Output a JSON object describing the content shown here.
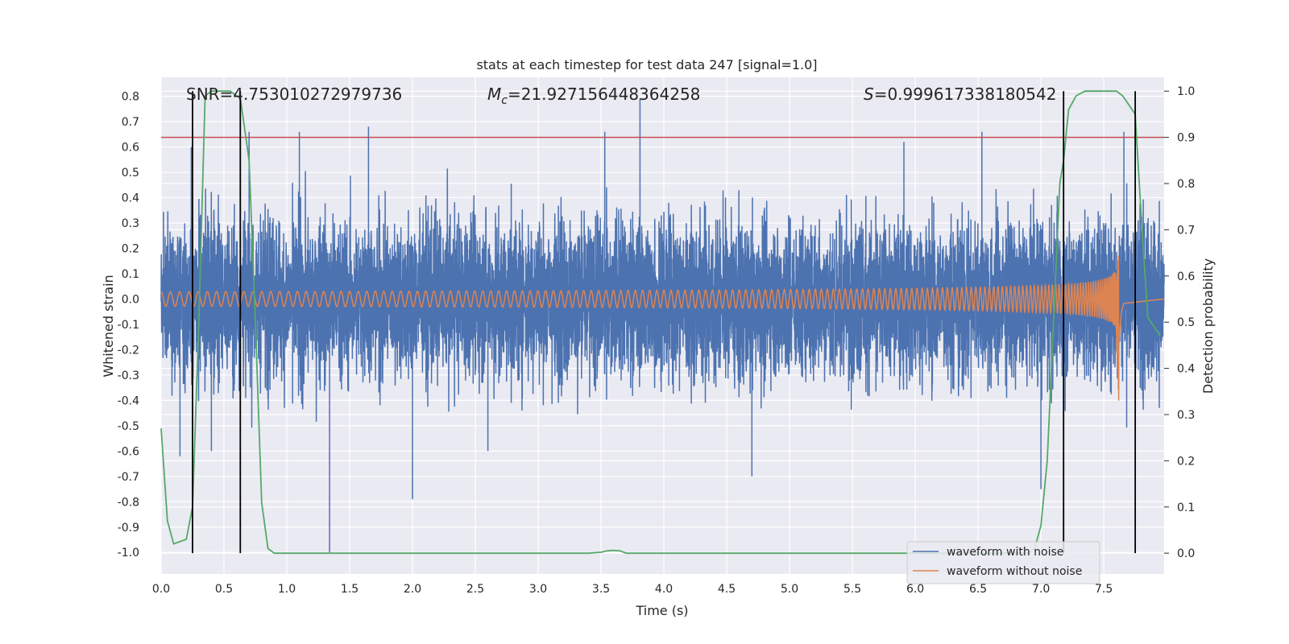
{
  "chart_data": {
    "type": "line",
    "title": "stats at each timestep for test data 247 [signal=1.0]",
    "xlabel": "Time (s)",
    "ylabel": "Whitened strain",
    "ylabel_right": "Detection probability",
    "xlim": [
      0.0,
      7.98
    ],
    "ylim": [
      -1.085,
      0.875
    ],
    "ylim_right": [
      -0.045,
      1.03
    ],
    "x_ticks": [
      "0.0",
      "0.5",
      "1.0",
      "1.5",
      "2.0",
      "2.5",
      "3.0",
      "3.5",
      "4.0",
      "4.5",
      "5.0",
      "5.5",
      "6.0",
      "6.5",
      "7.0",
      "7.5"
    ],
    "y_ticks": [
      "0.8",
      "0.7",
      "0.6",
      "0.5",
      "0.4",
      "0.3",
      "0.2",
      "0.1",
      "0.0",
      "-0.1",
      "-0.2",
      "-0.3",
      "-0.4",
      "-0.5",
      "-0.6",
      "-0.7",
      "-0.8",
      "-0.9",
      "-1.0"
    ],
    "y_ticks_right": [
      "1.0",
      "0.9",
      "0.8",
      "0.7",
      "0.6",
      "0.5",
      "0.4",
      "0.3",
      "0.2",
      "0.1",
      "0.0"
    ],
    "grid": true,
    "legend_placement": "lower-right",
    "annotations": {
      "snr": "SNR=4.753010272979736",
      "mc_symbol": "M",
      "mc_sub": "c",
      "mc_value": "=21.927156448364258",
      "s_symbol": "S",
      "s_value": "=0.999617338180542"
    },
    "threshold": {
      "value": 0.9,
      "color": "#c44e52"
    },
    "vlines": [
      0.25,
      0.63,
      7.18,
      7.75
    ],
    "series": [
      {
        "name": "waveform with noise",
        "color": "#4c72b0",
        "axis": "left",
        "noise_std": 0.16,
        "spikes": [
          [
            0.24,
            0.6
          ],
          [
            0.63,
            0.79
          ],
          [
            0.7,
            0.66
          ],
          [
            1.1,
            0.66
          ],
          [
            1.65,
            0.68
          ],
          [
            3.53,
            0.66
          ],
          [
            3.81,
            0.79
          ],
          [
            5.91,
            0.62
          ],
          [
            6.53,
            0.66
          ],
          [
            7.66,
            0.66
          ],
          [
            1.34,
            -1.0
          ],
          [
            2.0,
            -0.79
          ],
          [
            4.7,
            -0.7
          ],
          [
            7.0,
            -0.75
          ],
          [
            0.15,
            -0.62
          ],
          [
            0.4,
            -0.6
          ],
          [
            2.6,
            -0.6
          ]
        ]
      },
      {
        "name": "waveform without noise",
        "color": "#dd8452",
        "axis": "left",
        "t_merger": 7.62,
        "end_time": 7.66,
        "peak": 0.19,
        "peak_negative": -0.42
      },
      {
        "name": "detection probability",
        "color": "#55a868",
        "axis": "right",
        "x": [
          0.0,
          0.05,
          0.1,
          0.12,
          0.2,
          0.25,
          0.3,
          0.35,
          0.4,
          0.45,
          0.5,
          0.55,
          0.6,
          0.63,
          0.7,
          0.75,
          0.8,
          0.85,
          0.9,
          1.0,
          2.0,
          3.0,
          3.4,
          3.5,
          3.55,
          3.6,
          3.65,
          3.7,
          4.0,
          5.0,
          6.0,
          6.5,
          6.9,
          6.95,
          7.0,
          7.05,
          7.1,
          7.15,
          7.18,
          7.22,
          7.28,
          7.35,
          7.45,
          7.55,
          7.6,
          7.65,
          7.7,
          7.75,
          7.8,
          7.85,
          7.9,
          7.95
        ],
        "y": [
          0.27,
          0.07,
          0.02,
          0.022,
          0.03,
          0.1,
          0.5,
          0.99,
          1.0,
          1.0,
          1.0,
          1.0,
          0.99,
          0.985,
          0.85,
          0.5,
          0.11,
          0.01,
          0.0,
          0.0,
          0.0,
          0.0,
          0.0,
          0.002,
          0.005,
          0.006,
          0.005,
          0.0,
          0.0,
          0.0,
          0.0,
          0.0,
          0.0,
          0.01,
          0.06,
          0.2,
          0.5,
          0.8,
          0.85,
          0.96,
          0.99,
          1.0,
          1.0,
          1.0,
          1.0,
          0.99,
          0.97,
          0.95,
          0.72,
          0.51,
          0.49,
          0.47
        ]
      }
    ]
  }
}
